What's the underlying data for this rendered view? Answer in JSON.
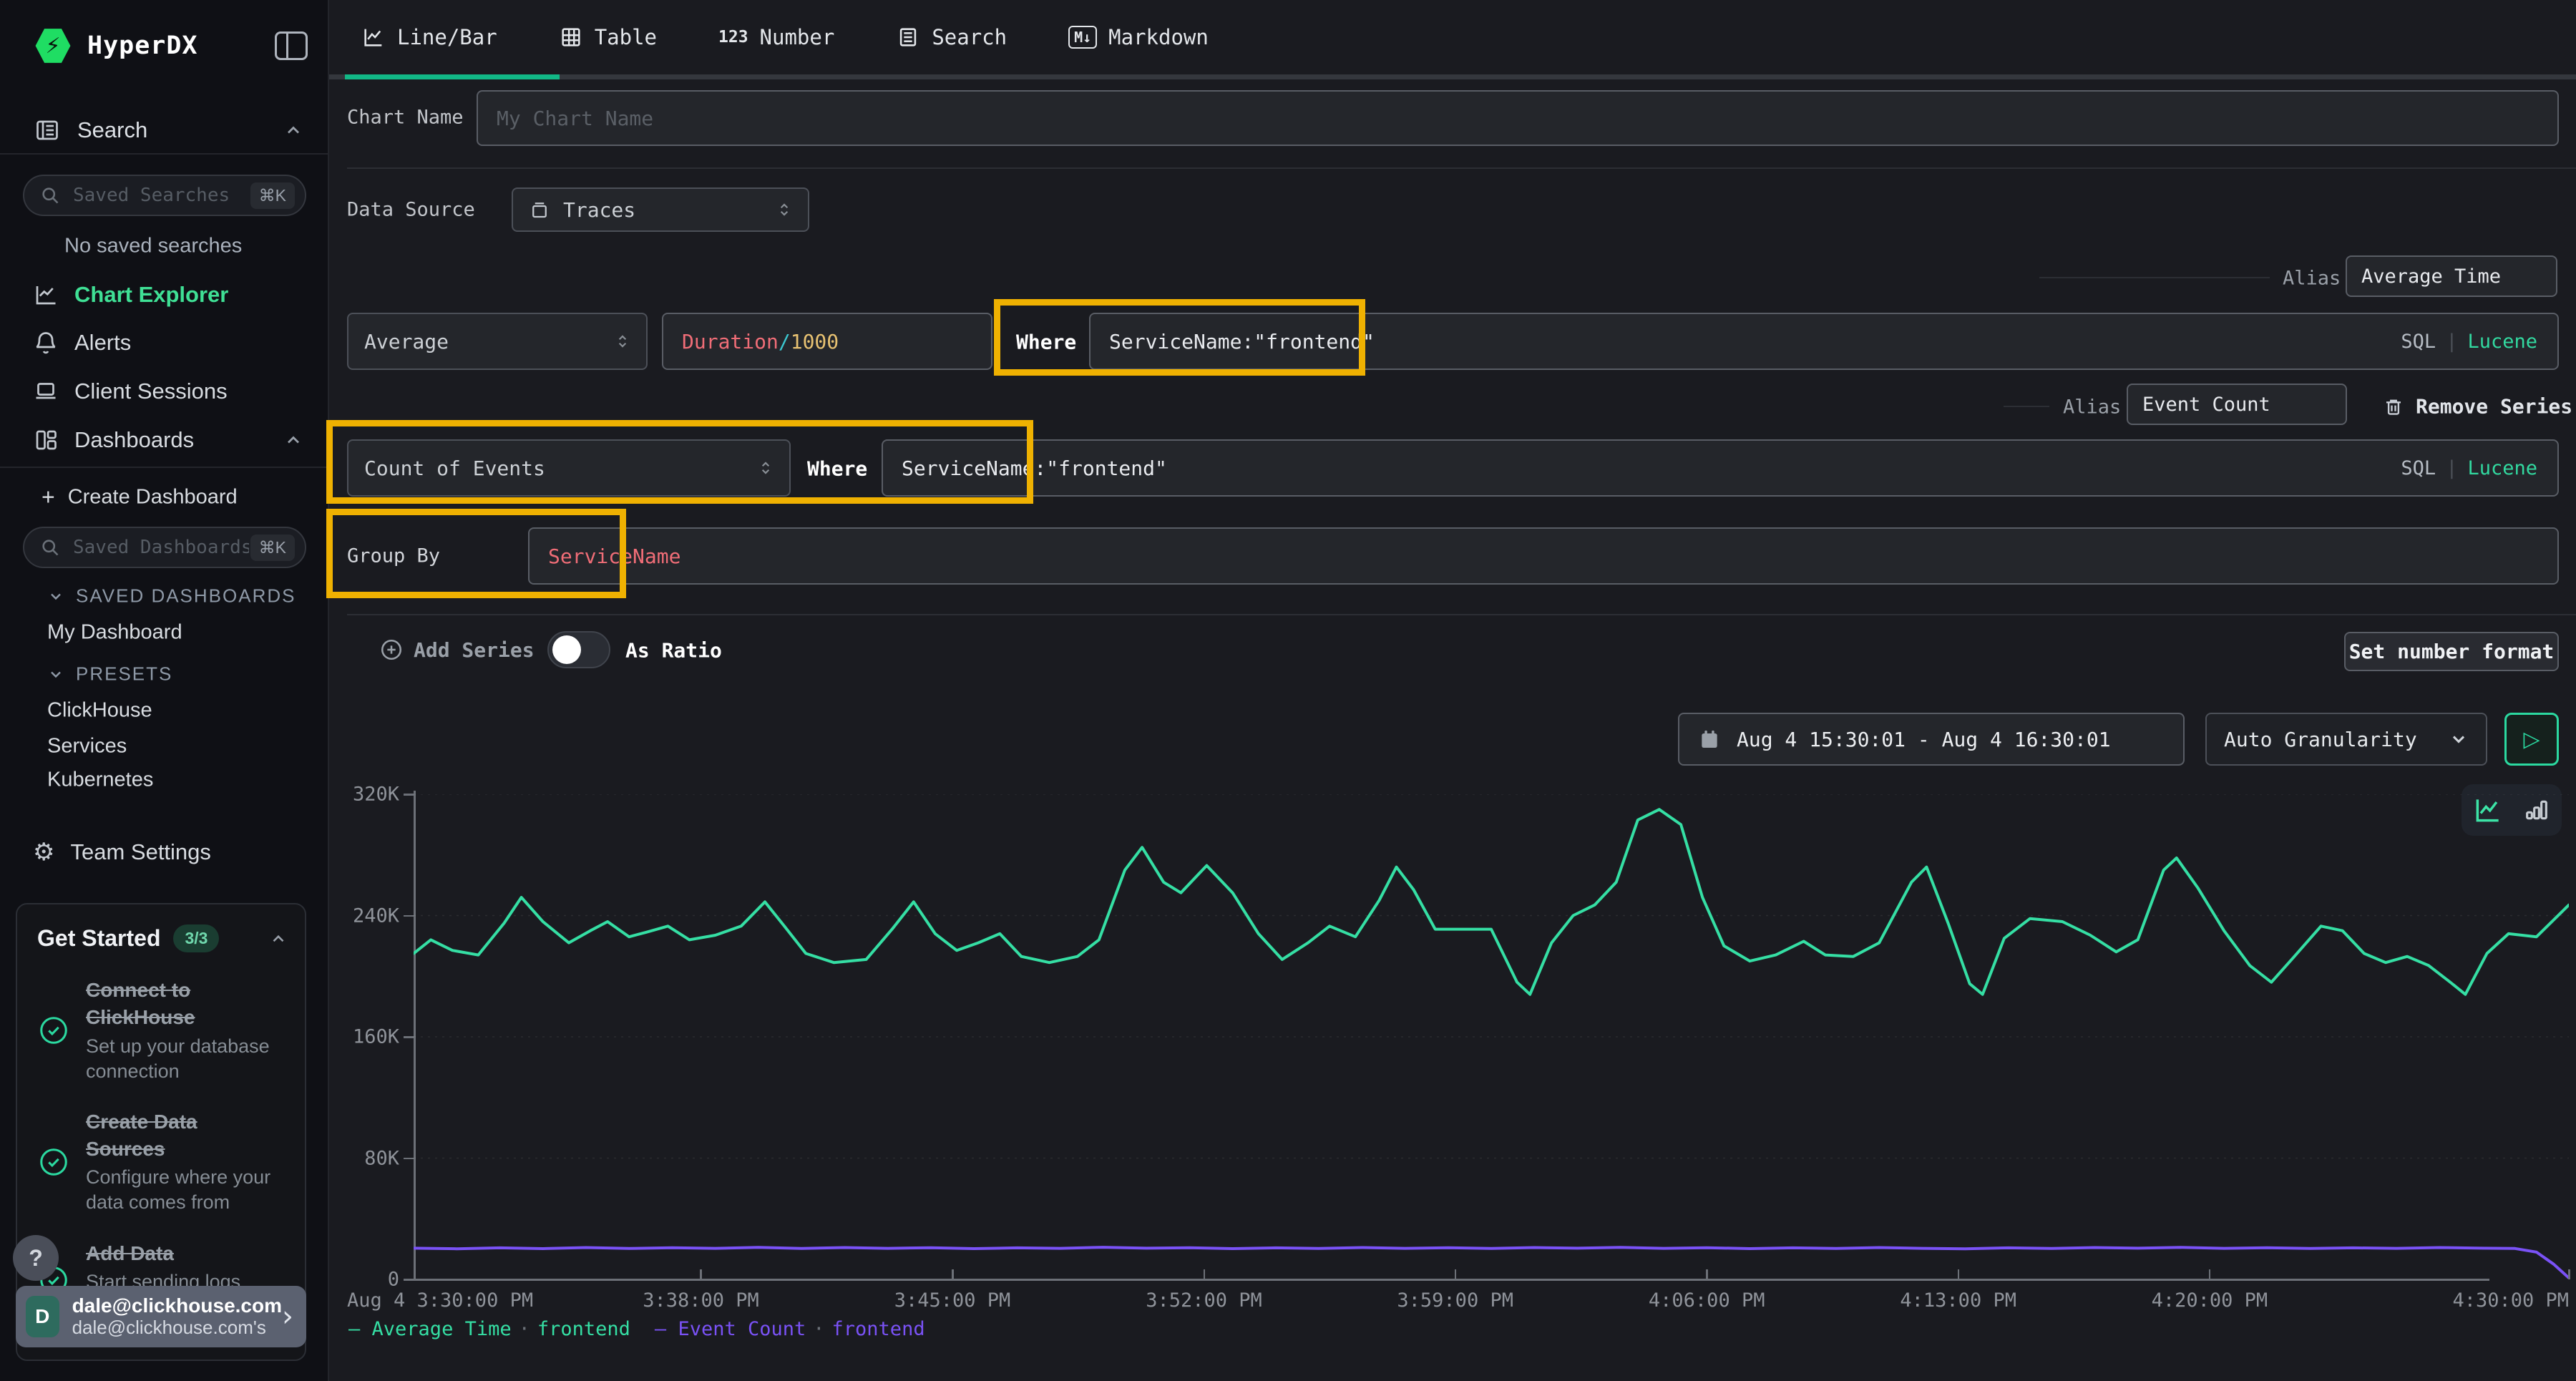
{
  "colors": {
    "accent_green": "#12b886",
    "sidebar_active_green": "#3fe095",
    "chart_green": "#35dfa4",
    "chart_purple": "#7a52f6",
    "highlight_yellow": "#efb101",
    "lucene_green": "#32d9a0",
    "code_red": "#f06d77",
    "code_cyan": "#3cc8d1",
    "code_amber": "#e8c272"
  },
  "sidebar": {
    "logo_text": "HyperDX",
    "search_section_label": "Search",
    "saved_searches_placeholder": "Saved Searches",
    "shortcut": "⌘K",
    "no_saved_searches": "No saved searches",
    "nav": {
      "chart_explorer": "Chart Explorer",
      "alerts": "Alerts",
      "client_sessions": "Client Sessions",
      "dashboards": "Dashboards",
      "create_plus": "+",
      "create_dashboard": "Create Dashboard"
    },
    "saved_dashboards_placeholder": "Saved Dashboards",
    "groups": {
      "saved_dashboards_label": "SAVED DASHBOARDS",
      "my_dashboard": "My Dashboard",
      "presets_label": "PRESETS",
      "presets": [
        "ClickHouse",
        "Services",
        "Kubernetes"
      ]
    },
    "team_settings": "Team Settings",
    "get_started": {
      "title": "Get Started",
      "badge": "3/3",
      "items": [
        {
          "title": "Connect to ClickHouse",
          "desc": "Set up your database connection"
        },
        {
          "title": "Create Data Sources",
          "desc": "Configure where your data comes from"
        },
        {
          "title": "Add Data",
          "desc": "Start sending logs, metrics, or traces"
        }
      ]
    },
    "help_glyph": "?",
    "user": {
      "avatar": "D",
      "email": "dale@clickhouse.com",
      "team": "dale@clickhouse.com's"
    }
  },
  "tabs": [
    {
      "label": "Line/Bar"
    },
    {
      "label": "Table"
    },
    {
      "label": "Number",
      "icon_text": "123"
    },
    {
      "label": "Search"
    },
    {
      "label": "Markdown",
      "icon_text": "M↓"
    }
  ],
  "form": {
    "chart_name_label": "Chart Name",
    "chart_name_placeholder": "My Chart Name",
    "data_source_label": "Data Source",
    "data_source_value": "Traces",
    "alias_label": "Alias",
    "sql": "SQL",
    "pipe": "|",
    "lucene": "Lucene",
    "series1": {
      "aggregation": "Average",
      "field_a": "Duration",
      "field_b": "/",
      "field_c": "1000",
      "where_label": "Where",
      "where_value": "ServiceName:\"frontend\"",
      "alias_value": "Average Time"
    },
    "series2": {
      "aggregation": "Count of Events",
      "where_label": "Where",
      "where_value": "ServiceName:\"frontend\"",
      "alias_value": "Event Count",
      "remove_label": "Remove Series"
    },
    "group_by_label": "Group By",
    "group_by_value": "ServiceName",
    "add_series_label": "Add Series",
    "as_ratio_label": "As Ratio",
    "set_number_format": "Set number format",
    "date_range": "Aug 4 15:30:01 - Aug 4 16:30:01",
    "granularity": "Auto Granularity",
    "play_glyph": "▷"
  },
  "chart_data": {
    "type": "line",
    "grid": "dotted-horizontal",
    "legend_position": "bottom-left",
    "legend_dot": "·",
    "ylim": [
      0,
      320000
    ],
    "y_axis": {
      "ticks": [
        {
          "v": 0,
          "label": "0"
        },
        {
          "v": 80,
          "label": "80K"
        },
        {
          "v": 160,
          "label": "160K"
        },
        {
          "v": 240,
          "label": "240K"
        },
        {
          "v": 320,
          "label": "320K"
        }
      ],
      "max": 320
    },
    "x_axis": {
      "ticks": [
        {
          "f": 0.0,
          "label": "Aug 4 3:30:00 PM",
          "align": "left"
        },
        {
          "f": 0.1333,
          "label": "3:38:00 PM"
        },
        {
          "f": 0.25,
          "label": "3:45:00 PM"
        },
        {
          "f": 0.3667,
          "label": "3:52:00 PM"
        },
        {
          "f": 0.4833,
          "label": "3:59:00 PM"
        },
        {
          "f": 0.6,
          "label": "4:06:00 PM"
        },
        {
          "f": 0.7167,
          "label": "4:13:00 PM"
        },
        {
          "f": 0.8333,
          "label": "4:20:00 PM"
        },
        {
          "f": 1.0,
          "label": "4:30:00 PM",
          "align": "right"
        }
      ]
    },
    "series": [
      {
        "name": "Average Time",
        "group": "frontend",
        "color": "#35dfa4",
        "points": [
          [
            0.0,
            215
          ],
          [
            0.008,
            224
          ],
          [
            0.018,
            217
          ],
          [
            0.03,
            214
          ],
          [
            0.042,
            235
          ],
          [
            0.05,
            252
          ],
          [
            0.06,
            236
          ],
          [
            0.072,
            222
          ],
          [
            0.082,
            230
          ],
          [
            0.09,
            236
          ],
          [
            0.1,
            226
          ],
          [
            0.108,
            229
          ],
          [
            0.118,
            233
          ],
          [
            0.128,
            224
          ],
          [
            0.14,
            227
          ],
          [
            0.152,
            233
          ],
          [
            0.163,
            249
          ],
          [
            0.172,
            233
          ],
          [
            0.182,
            215
          ],
          [
            0.195,
            209
          ],
          [
            0.21,
            211
          ],
          [
            0.222,
            231
          ],
          [
            0.232,
            249
          ],
          [
            0.242,
            228
          ],
          [
            0.252,
            217
          ],
          [
            0.262,
            222
          ],
          [
            0.272,
            228
          ],
          [
            0.282,
            213
          ],
          [
            0.295,
            209
          ],
          [
            0.308,
            213
          ],
          [
            0.318,
            224
          ],
          [
            0.33,
            270
          ],
          [
            0.338,
            285
          ],
          [
            0.348,
            262
          ],
          [
            0.356,
            255
          ],
          [
            0.368,
            273
          ],
          [
            0.38,
            255
          ],
          [
            0.392,
            228
          ],
          [
            0.403,
            211
          ],
          [
            0.415,
            222
          ],
          [
            0.425,
            233
          ],
          [
            0.437,
            226
          ],
          [
            0.448,
            250
          ],
          [
            0.456,
            272
          ],
          [
            0.464,
            257
          ],
          [
            0.474,
            231
          ],
          [
            0.5,
            231
          ],
          [
            0.512,
            196
          ],
          [
            0.518,
            188
          ],
          [
            0.528,
            222
          ],
          [
            0.538,
            240
          ],
          [
            0.548,
            247
          ],
          [
            0.558,
            262
          ],
          [
            0.568,
            303
          ],
          [
            0.578,
            310
          ],
          [
            0.588,
            300
          ],
          [
            0.598,
            252
          ],
          [
            0.608,
            220
          ],
          [
            0.62,
            210
          ],
          [
            0.632,
            214
          ],
          [
            0.645,
            223
          ],
          [
            0.655,
            214
          ],
          [
            0.668,
            213
          ],
          [
            0.68,
            222
          ],
          [
            0.695,
            262
          ],
          [
            0.702,
            272
          ],
          [
            0.712,
            235
          ],
          [
            0.722,
            195
          ],
          [
            0.728,
            188
          ],
          [
            0.738,
            225
          ],
          [
            0.75,
            238
          ],
          [
            0.765,
            236
          ],
          [
            0.778,
            227
          ],
          [
            0.79,
            216
          ],
          [
            0.8,
            224
          ],
          [
            0.812,
            270
          ],
          [
            0.818,
            278
          ],
          [
            0.828,
            258
          ],
          [
            0.84,
            230
          ],
          [
            0.852,
            207
          ],
          [
            0.862,
            196
          ],
          [
            0.872,
            212
          ],
          [
            0.885,
            233
          ],
          [
            0.895,
            230
          ],
          [
            0.905,
            215
          ],
          [
            0.915,
            209
          ],
          [
            0.925,
            213
          ],
          [
            0.935,
            207
          ],
          [
            0.945,
            196
          ],
          [
            0.952,
            188
          ],
          [
            0.962,
            215
          ],
          [
            0.972,
            228
          ],
          [
            0.985,
            226
          ],
          [
            1.0,
            247
          ]
        ]
      },
      {
        "name": "Event Count",
        "group": "frontend",
        "color": "#7a52f6",
        "points": [
          [
            0.0,
            20.6
          ],
          [
            0.02,
            20.2
          ],
          [
            0.04,
            20.8
          ],
          [
            0.06,
            20.3
          ],
          [
            0.08,
            21.0
          ],
          [
            0.1,
            20.4
          ],
          [
            0.12,
            20.9
          ],
          [
            0.14,
            20.5
          ],
          [
            0.16,
            21.1
          ],
          [
            0.18,
            20.4
          ],
          [
            0.2,
            21.0
          ],
          [
            0.22,
            20.5
          ],
          [
            0.24,
            20.9
          ],
          [
            0.26,
            20.3
          ],
          [
            0.28,
            20.8
          ],
          [
            0.3,
            20.5
          ],
          [
            0.32,
            21.2
          ],
          [
            0.34,
            20.6
          ],
          [
            0.36,
            20.9
          ],
          [
            0.38,
            20.3
          ],
          [
            0.4,
            20.8
          ],
          [
            0.42,
            20.4
          ],
          [
            0.44,
            21.0
          ],
          [
            0.46,
            20.5
          ],
          [
            0.48,
            20.9
          ],
          [
            0.5,
            20.4
          ],
          [
            0.52,
            21.0
          ],
          [
            0.54,
            20.6
          ],
          [
            0.56,
            21.1
          ],
          [
            0.58,
            20.5
          ],
          [
            0.6,
            20.9
          ],
          [
            0.62,
            20.3
          ],
          [
            0.64,
            20.8
          ],
          [
            0.66,
            20.4
          ],
          [
            0.68,
            21.0
          ],
          [
            0.7,
            20.5
          ],
          [
            0.72,
            20.2
          ],
          [
            0.74,
            20.8
          ],
          [
            0.76,
            20.4
          ],
          [
            0.78,
            21.0
          ],
          [
            0.8,
            20.6
          ],
          [
            0.82,
            21.1
          ],
          [
            0.84,
            20.5
          ],
          [
            0.86,
            20.9
          ],
          [
            0.88,
            20.4
          ],
          [
            0.9,
            20.8
          ],
          [
            0.92,
            20.5
          ],
          [
            0.94,
            21.0
          ],
          [
            0.96,
            20.6
          ],
          [
            0.975,
            20.4
          ],
          [
            0.985,
            18.0
          ],
          [
            0.993,
            10.0
          ],
          [
            1.0,
            1.0
          ]
        ]
      }
    ]
  }
}
